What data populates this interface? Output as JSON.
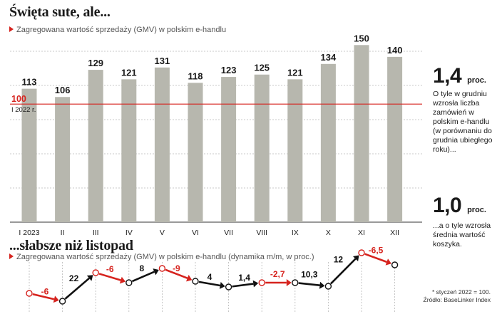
{
  "top": {
    "title": "Święta sute, ale...",
    "subtitle": "Zagregowana wartość sprzedaży (GMV) w polskim e-handlu",
    "reference_value": "100",
    "reference_label": "I 2022 r."
  },
  "bottom": {
    "title": "...słabsze niż listopad",
    "subtitle": "Zagregowana wartość sprzedaży (GMV) w polskim e-handlu (dynamika m/m, w proc.)"
  },
  "side": {
    "stat1_value": "1,4",
    "stat1_unit": "proc.",
    "stat1_text": "O tyle w grudniu wzrosła liczba zamówień w polskim e-handlu (w porównaniu do grudnia ubiegłego roku)...",
    "stat2_value": "1,0",
    "stat2_unit": "proc.",
    "stat2_text": "...a o tyle wzrosła średnia wartość koszyka."
  },
  "footnote": {
    "line1": "* styczeń 2022 = 100.",
    "line2": "Źródło: BaseLinker Index"
  },
  "colors": {
    "bar": "#b7b7ae",
    "accent": "#d6231e",
    "text": "#1a1a1a",
    "grid": "#b8b8b8"
  },
  "chart_data": [
    {
      "type": "bar",
      "categories": [
        "I 2023",
        "II",
        "III",
        "IV",
        "V",
        "VI",
        "VII",
        "VIII",
        "IX",
        "X",
        "XI",
        "XII"
      ],
      "values": [
        113,
        106,
        129,
        121,
        131,
        118,
        123,
        125,
        121,
        134,
        150,
        140
      ],
      "data_labels": [
        "113",
        "106",
        "129",
        "121",
        "131",
        "118",
        "123",
        "125",
        "121",
        "134",
        "150",
        "140"
      ],
      "reference_line": 100,
      "ylim": [
        0,
        155
      ],
      "grid": true
    },
    {
      "type": "line",
      "values": [
        -6,
        22,
        -6,
        8,
        -9,
        4,
        1.4,
        -2.7,
        10.3,
        12,
        -6.5
      ],
      "data_labels": [
        "-6",
        "22",
        "-6",
        "8",
        "-9",
        "4",
        "1,4",
        "-2,7",
        "10,3",
        "12",
        "-6,5"
      ]
    }
  ]
}
